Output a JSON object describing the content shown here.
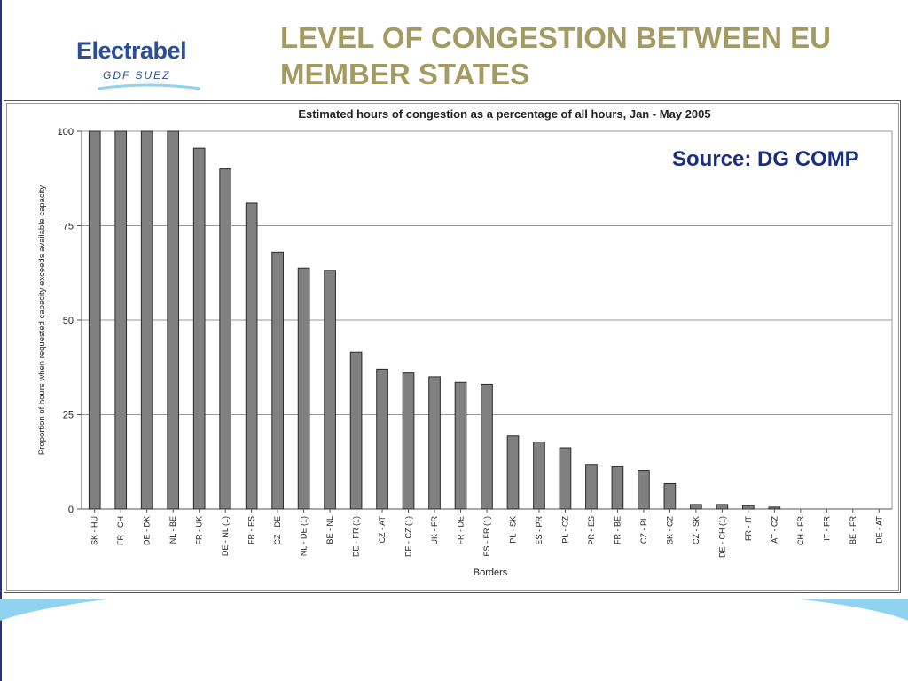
{
  "header": {
    "title_line1": "LEVEL OF CONGESTION BETWEEN EU",
    "title_line2": "MEMBER STATES"
  },
  "logo": {
    "word": "Electrabel",
    "sub": "GDF SUEZ"
  },
  "source_note": "Source: DG COMP",
  "colors": {
    "title": "#a49b63",
    "logo": "#2a4f9a",
    "source": "#1a2f7a",
    "bar": "#808080",
    "accent_wave": "#8fd3f0"
  },
  "chart_data": {
    "type": "bar",
    "title": "Estimated hours of congestion as a percentage of all hours, Jan - May 2005",
    "xlabel": "Borders",
    "ylabel": "Proportion of hours when requested capacity exceeds available capacity",
    "ylim": [
      0,
      100
    ],
    "yticks": [
      0,
      25,
      50,
      75,
      100
    ],
    "grid": true,
    "categories": [
      "SK - HU",
      "FR - CH",
      "DE - DK",
      "NL - BE",
      "FR - UK",
      "DE - NL (1)",
      "FR - ES",
      "CZ - DE",
      "NL - DE (1)",
      "BE - NL",
      "DE - FR (1)",
      "CZ - AT",
      "DE - CZ (1)",
      "UK - FR",
      "FR - DE",
      "ES - FR (1)",
      "PL - SK",
      "ES - PR",
      "PL - CZ",
      "PR - ES",
      "FR - BE",
      "CZ - PL",
      "SK - CZ",
      "CZ - SK",
      "DE - CH (1)",
      "FR - IT",
      "AT - CZ",
      "CH - FR",
      "IT - FR",
      "BE - FR",
      "DE - AT"
    ],
    "values": [
      100,
      100,
      100,
      100,
      95.5,
      90,
      81,
      68,
      63.8,
      63.2,
      41.5,
      37,
      36,
      35,
      33.5,
      33,
      19.3,
      17.7,
      16.2,
      11.8,
      11.2,
      10.2,
      6.7,
      1.2,
      1.2,
      0.9,
      0.5,
      0,
      0,
      0,
      0
    ]
  }
}
